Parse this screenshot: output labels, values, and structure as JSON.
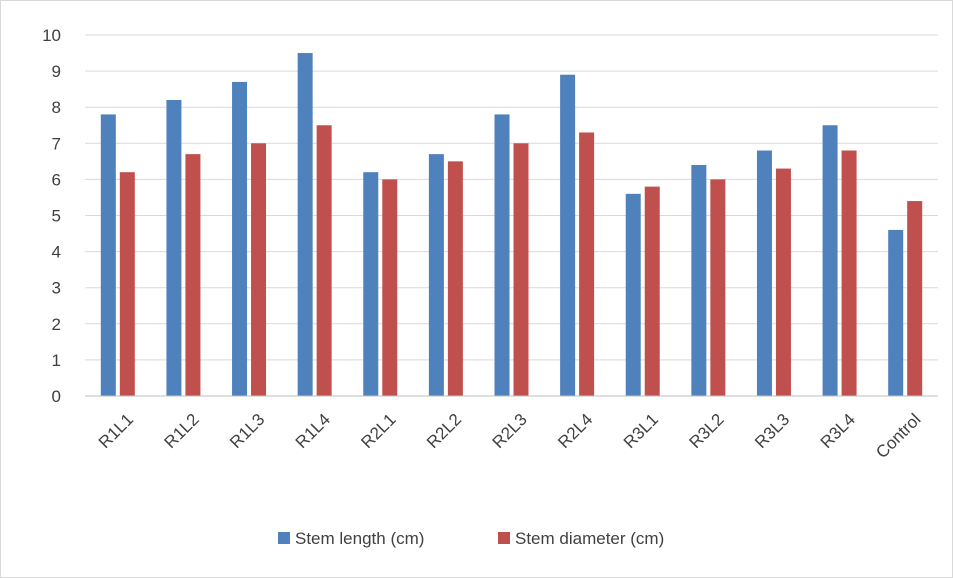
{
  "chart_data": {
    "type": "bar",
    "categories": [
      "R1L1",
      "R1L2",
      "R1L3",
      "R1L4",
      "R2L1",
      "R2L2",
      "R2L3",
      "R2L4",
      "R3L1",
      "R3L2",
      "R3L3",
      "R3L4",
      "Control"
    ],
    "series": [
      {
        "name": "Stem length (cm)",
        "color": "#4f81bd",
        "values": [
          7.8,
          8.2,
          8.7,
          9.5,
          6.2,
          6.7,
          7.8,
          8.9,
          5.6,
          6.4,
          6.8,
          7.5,
          4.6
        ]
      },
      {
        "name": "Stem diameter (cm)",
        "color": "#c0504d",
        "values": [
          6.2,
          6.7,
          7.0,
          7.5,
          6.0,
          6.5,
          7.0,
          7.3,
          5.8,
          6.0,
          6.3,
          6.8,
          5.4
        ]
      }
    ],
    "title": "",
    "xlabel": "",
    "ylabel": "",
    "ylim": [
      0,
      10
    ],
    "yticks": [
      0,
      1,
      2,
      3,
      4,
      5,
      6,
      7,
      8,
      9,
      10
    ],
    "grid": true,
    "legend_position": "bottom"
  }
}
